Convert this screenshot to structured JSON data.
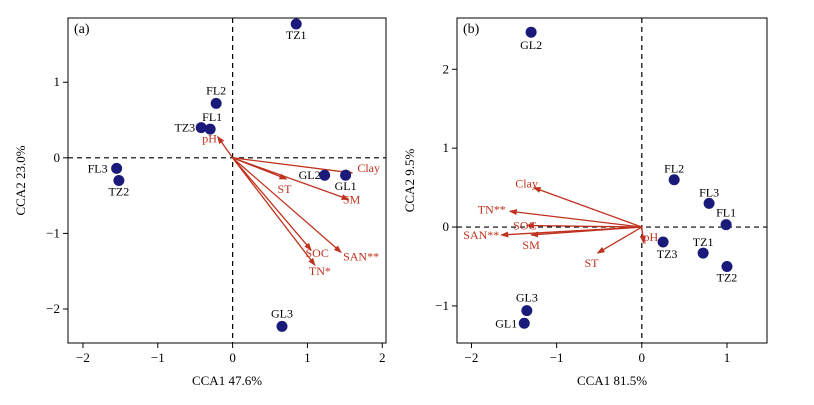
{
  "colors": {
    "point": "#1a1a7a",
    "arrow": "#c0321e",
    "axis": "#000000"
  },
  "chart_data": [
    {
      "type": "scatter",
      "panel_label": "(a)",
      "xlabel": "CCA1 47.6%",
      "ylabel": "CCA2 23.0%",
      "xlim": [
        -2.2,
        2.05
      ],
      "ylim": [
        -2.45,
        1.85
      ],
      "xticks": [
        -2,
        -1,
        0,
        1,
        2
      ],
      "yticks": [
        -2,
        -1,
        0,
        1
      ],
      "sites": [
        {
          "label": "TZ1",
          "x": 0.85,
          "y": 1.77
        },
        {
          "label": "FL2",
          "x": -0.22,
          "y": 0.72
        },
        {
          "label": "FL1",
          "x": -0.3,
          "y": 0.38
        },
        {
          "label": "TZ3",
          "x": -0.42,
          "y": 0.4
        },
        {
          "label": "GL2",
          "x": 1.23,
          "y": -0.23
        },
        {
          "label": "GL1",
          "x": 1.51,
          "y": -0.23
        },
        {
          "label": "FL3",
          "x": -1.55,
          "y": -0.14
        },
        {
          "label": "TZ2",
          "x": -1.52,
          "y": -0.3
        },
        {
          "label": "GL3",
          "x": 0.66,
          "y": -2.23
        }
      ],
      "vectors": [
        {
          "label": "pH",
          "x": -0.2,
          "y": 0.28
        },
        {
          "label": "Clay",
          "x": 1.6,
          "y": -0.2
        },
        {
          "label": "ST",
          "x": 0.72,
          "y": -0.28
        },
        {
          "label": "SM",
          "x": 1.55,
          "y": -0.55
        },
        {
          "label": "SOC",
          "x": 1.05,
          "y": -1.22
        },
        {
          "label": "SAN**",
          "x": 1.45,
          "y": -1.25
        },
        {
          "label": "TN*",
          "x": 1.1,
          "y": -1.42
        }
      ]
    },
    {
      "type": "scatter",
      "panel_label": "(b)",
      "xlabel": "CCA1 81.5%",
      "ylabel": "CCA2 9.5%",
      "xlim": [
        -2.17,
        1.47
      ],
      "ylim": [
        -1.47,
        2.65
      ],
      "xticks": [
        -2,
        -1,
        0,
        1
      ],
      "yticks": [
        -1,
        0,
        1,
        2
      ],
      "sites": [
        {
          "label": "GL2",
          "x": -1.3,
          "y": 2.47
        },
        {
          "label": "FL2",
          "x": 0.38,
          "y": 0.6
        },
        {
          "label": "FL3",
          "x": 0.79,
          "y": 0.3
        },
        {
          "label": "FL1",
          "x": 0.99,
          "y": 0.03
        },
        {
          "label": "TZ1",
          "x": 0.72,
          "y": -0.33
        },
        {
          "label": "TZ3",
          "x": 0.25,
          "y": -0.19
        },
        {
          "label": "TZ2",
          "x": 1.0,
          "y": -0.5
        },
        {
          "label": "GL3",
          "x": -1.35,
          "y": -1.06
        },
        {
          "label": "GL1",
          "x": -1.38,
          "y": -1.22
        }
      ],
      "vectors": [
        {
          "label": "Clay",
          "x": -1.27,
          "y": 0.5
        },
        {
          "label": "TN**",
          "x": -1.55,
          "y": 0.2
        },
        {
          "label": "SOC",
          "x": -1.35,
          "y": 0.02
        },
        {
          "label": "SAN**",
          "x": -1.65,
          "y": -0.1
        },
        {
          "label": "SM",
          "x": -1.3,
          "y": -0.1
        },
        {
          "label": "ST",
          "x": -0.52,
          "y": -0.33
        },
        {
          "label": "pH",
          "x": 0.02,
          "y": -0.2
        }
      ]
    }
  ]
}
